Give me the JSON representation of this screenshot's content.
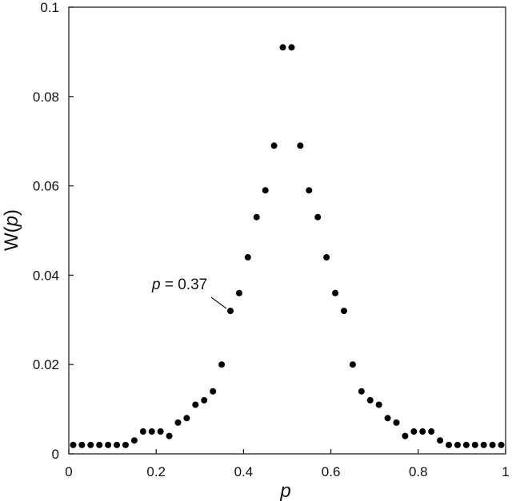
{
  "chart_data": {
    "type": "scatter",
    "title": "",
    "xlabel": "p",
    "ylabel": "W(p)",
    "xlim": [
      0,
      1
    ],
    "ylim": [
      0,
      0.1
    ],
    "grid": false,
    "x_ticks": [
      0,
      0.2,
      0.4,
      0.6,
      0.8,
      1
    ],
    "x_tick_labels": [
      "0",
      "0.2",
      "0.4",
      "0.6",
      "0.8",
      "1"
    ],
    "y_ticks": [
      0,
      0.02,
      0.04,
      0.06,
      0.08,
      0.1
    ],
    "y_tick_labels": [
      "0",
      "0.02",
      "0.04",
      "0.06",
      "0.08",
      "0.1"
    ],
    "marker_color": "#000000",
    "series": [
      {
        "x": [
          0.01,
          0.03,
          0.05,
          0.07,
          0.09,
          0.11,
          0.13,
          0.15,
          0.17,
          0.19,
          0.21,
          0.23,
          0.25,
          0.27,
          0.29,
          0.31,
          0.33,
          0.35,
          0.37,
          0.39,
          0.41,
          0.43,
          0.45,
          0.47,
          0.49,
          0.51,
          0.53,
          0.55,
          0.57,
          0.59,
          0.61,
          0.63,
          0.65,
          0.67,
          0.69,
          0.71,
          0.73,
          0.75,
          0.77,
          0.79,
          0.81,
          0.83,
          0.85,
          0.87,
          0.89,
          0.91,
          0.93,
          0.95,
          0.97,
          0.99
        ],
        "y": [
          0.002,
          0.002,
          0.002,
          0.002,
          0.002,
          0.002,
          0.002,
          0.003,
          0.005,
          0.005,
          0.005,
          0.004,
          0.007,
          0.008,
          0.011,
          0.012,
          0.014,
          0.02,
          0.032,
          0.036,
          0.044,
          0.053,
          0.059,
          0.069,
          0.091,
          0.091,
          0.069,
          0.059,
          0.053,
          0.044,
          0.036,
          0.032,
          0.02,
          0.014,
          0.012,
          0.011,
          0.008,
          0.007,
          0.004,
          0.005,
          0.005,
          0.005,
          0.003,
          0.002,
          0.002,
          0.002,
          0.002,
          0.002,
          0.002,
          0.002
        ]
      }
    ],
    "annotations": [
      {
        "var": "p",
        "text": " = 0.37",
        "x": 0.37,
        "y": 0.032
      }
    ]
  }
}
